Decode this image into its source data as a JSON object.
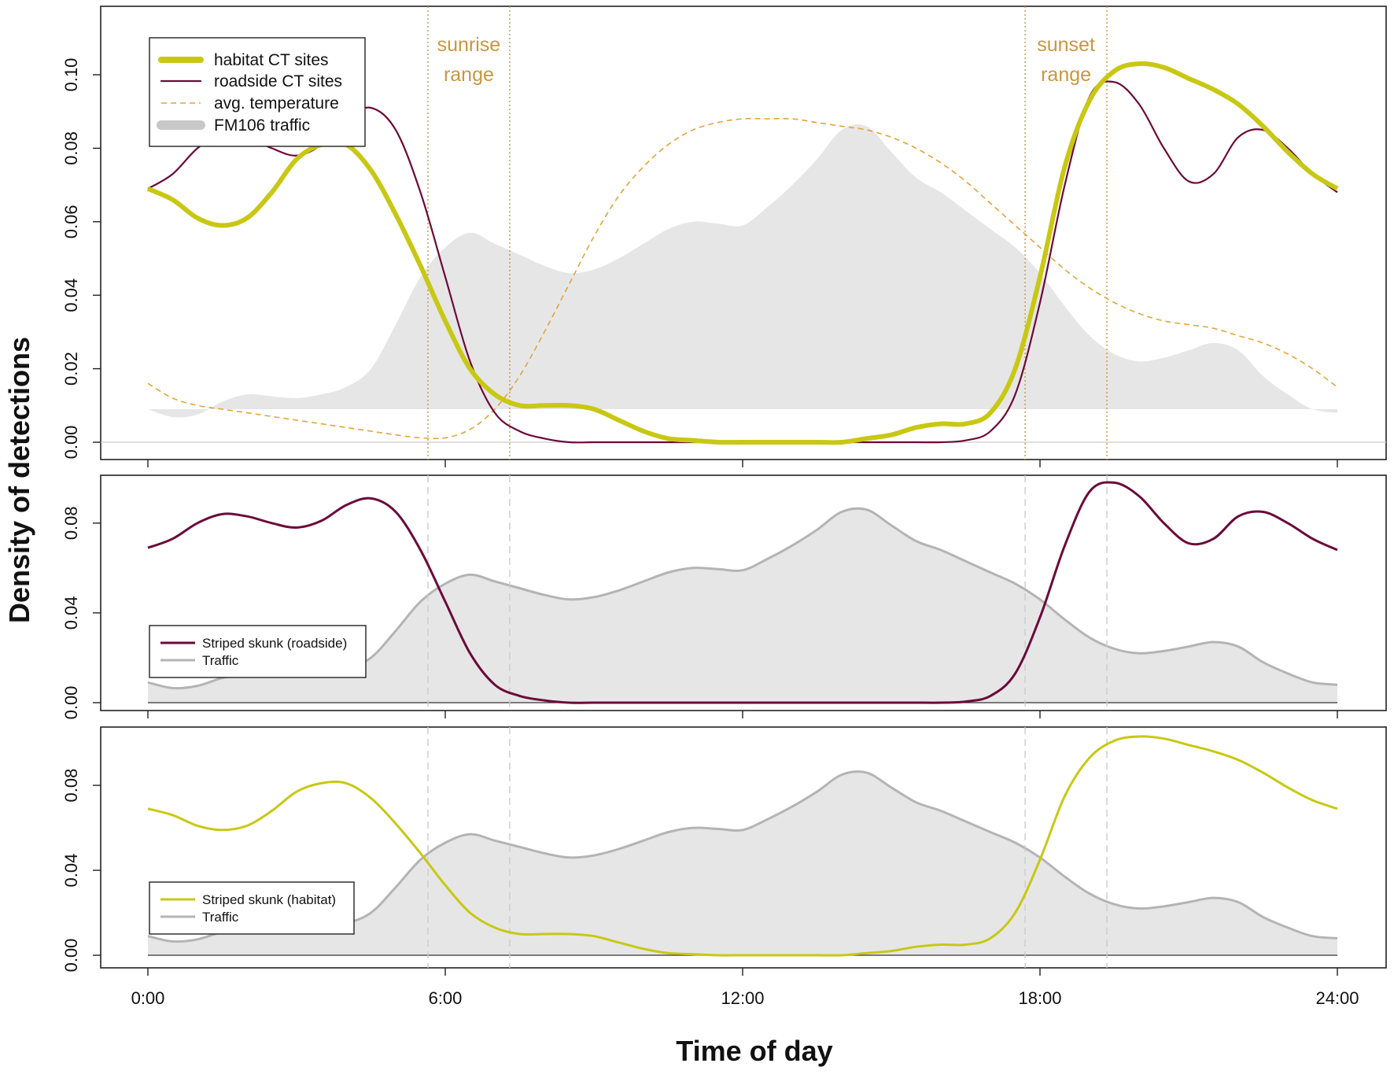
{
  "colors": {
    "habitat": "#c8c814",
    "roadside": "#6b0a3a",
    "temperature": "#e3a43a",
    "traffic_fill": "#e6e6e6",
    "traffic_line": "#b4b4b4",
    "range_line": "#c9973e",
    "guide_line": "#cccccc"
  },
  "chart_data": {
    "type": "line",
    "title": "",
    "xlabel": "Time of day",
    "ylabel": "Density of detections",
    "x_ticks": [
      0,
      6,
      12,
      18,
      24
    ],
    "x_tick_labels": [
      "0:00",
      "6:00",
      "12:00",
      "18:00",
      "24:00"
    ],
    "xlim": [
      0,
      24
    ],
    "sunrise_range": {
      "label_line1": "sunrise",
      "label_line2": "range",
      "start_hour": 5.65,
      "end_hour": 7.3
    },
    "sunset_range": {
      "label_line1": "sunset",
      "label_line2": "range",
      "start_hour": 17.7,
      "end_hour": 19.35
    },
    "x_hours": [
      0,
      0.5,
      1,
      1.5,
      2,
      2.5,
      3,
      3.5,
      4,
      4.5,
      5,
      5.5,
      6,
      6.5,
      7,
      7.5,
      8,
      8.5,
      9,
      9.5,
      10,
      10.5,
      11,
      11.5,
      12,
      12.5,
      13,
      13.5,
      14,
      14.5,
      15,
      15.5,
      16,
      16.5,
      17,
      17.5,
      18,
      18.5,
      19,
      19.5,
      20,
      20.5,
      21,
      21.5,
      22,
      22.5,
      23,
      23.5,
      24
    ],
    "series": [
      {
        "name": "habitat CT sites",
        "values": [
          0.069,
          0.066,
          0.061,
          0.059,
          0.061,
          0.068,
          0.077,
          0.081,
          0.081,
          0.074,
          0.062,
          0.048,
          0.033,
          0.02,
          0.013,
          0.01,
          0.01,
          0.01,
          0.009,
          0.006,
          0.003,
          0.001,
          0.0005,
          0,
          0,
          0,
          0,
          0,
          0,
          0.001,
          0.002,
          0.004,
          0.005,
          0.005,
          0.008,
          0.02,
          0.045,
          0.075,
          0.093,
          0.101,
          0.103,
          0.102,
          0.099,
          0.096,
          0.092,
          0.086,
          0.079,
          0.073,
          0.069
        ]
      },
      {
        "name": "roadside CT sites",
        "values": [
          0.069,
          0.073,
          0.08,
          0.084,
          0.083,
          0.08,
          0.078,
          0.081,
          0.088,
          0.091,
          0.085,
          0.068,
          0.045,
          0.022,
          0.008,
          0.003,
          0.001,
          0,
          0,
          0,
          0,
          0,
          0,
          0,
          0,
          0,
          0,
          0,
          0,
          0,
          0,
          0,
          0,
          0.0005,
          0.003,
          0.013,
          0.038,
          0.07,
          0.094,
          0.098,
          0.092,
          0.08,
          0.071,
          0.073,
          0.083,
          0.085,
          0.08,
          0.073,
          0.068
        ]
      },
      {
        "name": "avg. temperature",
        "values": [
          0.016,
          0.012,
          0.01,
          0.009,
          0.008,
          0.007,
          0.006,
          0.005,
          0.004,
          0.003,
          0.002,
          0.0012,
          0.0012,
          0.0035,
          0.009,
          0.018,
          0.03,
          0.043,
          0.056,
          0.067,
          0.075,
          0.081,
          0.085,
          0.087,
          0.088,
          0.088,
          0.088,
          0.087,
          0.086,
          0.085,
          0.083,
          0.08,
          0.076,
          0.071,
          0.065,
          0.059,
          0.053,
          0.047,
          0.042,
          0.038,
          0.035,
          0.033,
          0.032,
          0.031,
          0.029,
          0.027,
          0.024,
          0.02,
          0.015
        ]
      },
      {
        "name": "FM106 traffic",
        "values": [
          0.009,
          0.0065,
          0.0075,
          0.011,
          0.013,
          0.0125,
          0.012,
          0.013,
          0.015,
          0.02,
          0.032,
          0.045,
          0.053,
          0.057,
          0.054,
          0.051,
          0.048,
          0.046,
          0.047,
          0.05,
          0.054,
          0.058,
          0.06,
          0.0595,
          0.059,
          0.064,
          0.07,
          0.077,
          0.085,
          0.086,
          0.079,
          0.072,
          0.068,
          0.063,
          0.058,
          0.053,
          0.046,
          0.037,
          0.029,
          0.024,
          0.022,
          0.023,
          0.025,
          0.027,
          0.025,
          0.018,
          0.013,
          0.009,
          0.008
        ]
      }
    ],
    "panels": [
      {
        "id": "all",
        "ylim": [
          -0.005,
          0.118
        ],
        "y_ticks": [
          0,
          0.02,
          0.04,
          0.06,
          0.08,
          0.1
        ],
        "y_tick_labels": [
          "0.00",
          "0.02",
          "0.04",
          "0.06",
          "0.08",
          "0.10"
        ],
        "series_shown": [
          "habitat CT sites",
          "roadside CT sites",
          "avg. temperature",
          "FM106 traffic"
        ],
        "legend": [
          "habitat CT sites",
          "roadside CT sites",
          "avg. temperature",
          "FM106 traffic"
        ],
        "legend_position": "top-left"
      },
      {
        "id": "roadside",
        "ylim": [
          -0.003,
          0.1
        ],
        "y_ticks": [
          0,
          0.04,
          0.08
        ],
        "y_tick_labels": [
          "0.00",
          "0.04",
          "0.08"
        ],
        "series_shown": [
          "FM106 traffic",
          "roadside CT sites"
        ],
        "legend": [
          "Striped skunk (roadside)",
          "Traffic"
        ],
        "legend_position": "bottom-left"
      },
      {
        "id": "habitat",
        "ylim": [
          -0.003,
          0.105
        ],
        "y_ticks": [
          0,
          0.04,
          0.08
        ],
        "y_tick_labels": [
          "0.00",
          "0.04",
          "0.08"
        ],
        "series_shown": [
          "FM106 traffic",
          "habitat CT sites"
        ],
        "legend": [
          "Striped skunk (habitat)",
          "Traffic"
        ],
        "legend_position": "bottom-left"
      }
    ]
  }
}
